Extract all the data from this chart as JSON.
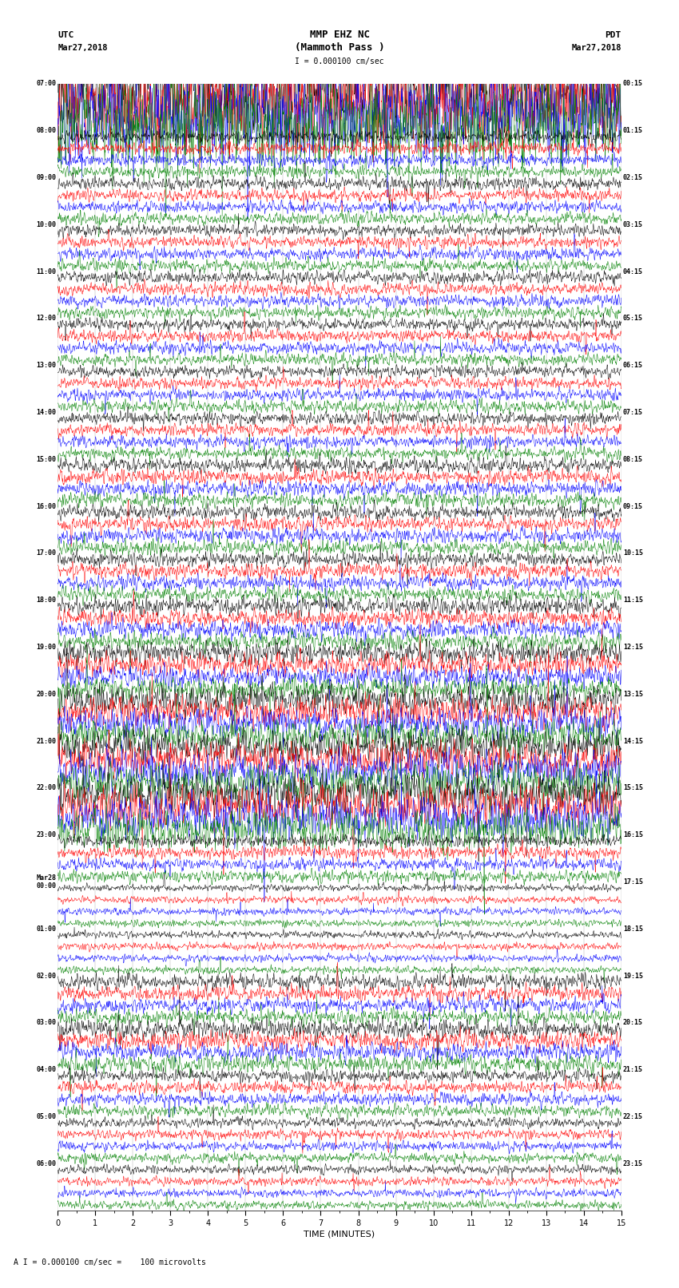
{
  "title_line1": "MMP EHZ NC",
  "title_line2": "(Mammoth Pass )",
  "scale_text": "I = 0.000100 cm/sec",
  "bottom_text": "A I = 0.000100 cm/sec =    100 microvolts",
  "xlabel": "TIME (MINUTES)",
  "left_times_utc": [
    "07:00",
    "08:00",
    "09:00",
    "10:00",
    "11:00",
    "12:00",
    "13:00",
    "14:00",
    "15:00",
    "16:00",
    "17:00",
    "18:00",
    "19:00",
    "20:00",
    "21:00",
    "22:00",
    "23:00",
    "Mar28\n00:00",
    "01:00",
    "02:00",
    "03:00",
    "04:00",
    "05:00",
    "06:00"
  ],
  "right_times_pdt": [
    "00:15",
    "01:15",
    "02:15",
    "03:15",
    "04:15",
    "05:15",
    "06:15",
    "07:15",
    "08:15",
    "09:15",
    "10:15",
    "11:15",
    "12:15",
    "13:15",
    "14:15",
    "15:15",
    "16:15",
    "17:15",
    "18:15",
    "19:15",
    "20:15",
    "21:15",
    "22:15",
    "23:15"
  ],
  "n_rows": 24,
  "traces_per_row": 4,
  "trace_colors": [
    "black",
    "red",
    "blue",
    "green"
  ],
  "bg_color": "white",
  "xlim": [
    0,
    15
  ],
  "xticks": [
    0,
    1,
    2,
    3,
    4,
    5,
    6,
    7,
    8,
    9,
    10,
    11,
    12,
    13,
    14,
    15
  ],
  "fig_width": 8.5,
  "fig_height": 16.13,
  "row_amplitudes": [
    4.0,
    1.0,
    1.0,
    1.0,
    1.0,
    1.0,
    1.0,
    1.0,
    1.2,
    1.2,
    1.2,
    1.5,
    1.8,
    2.5,
    3.0,
    3.5,
    1.0,
    0.6,
    0.6,
    1.2,
    1.5,
    1.0,
    0.8,
    0.7
  ]
}
